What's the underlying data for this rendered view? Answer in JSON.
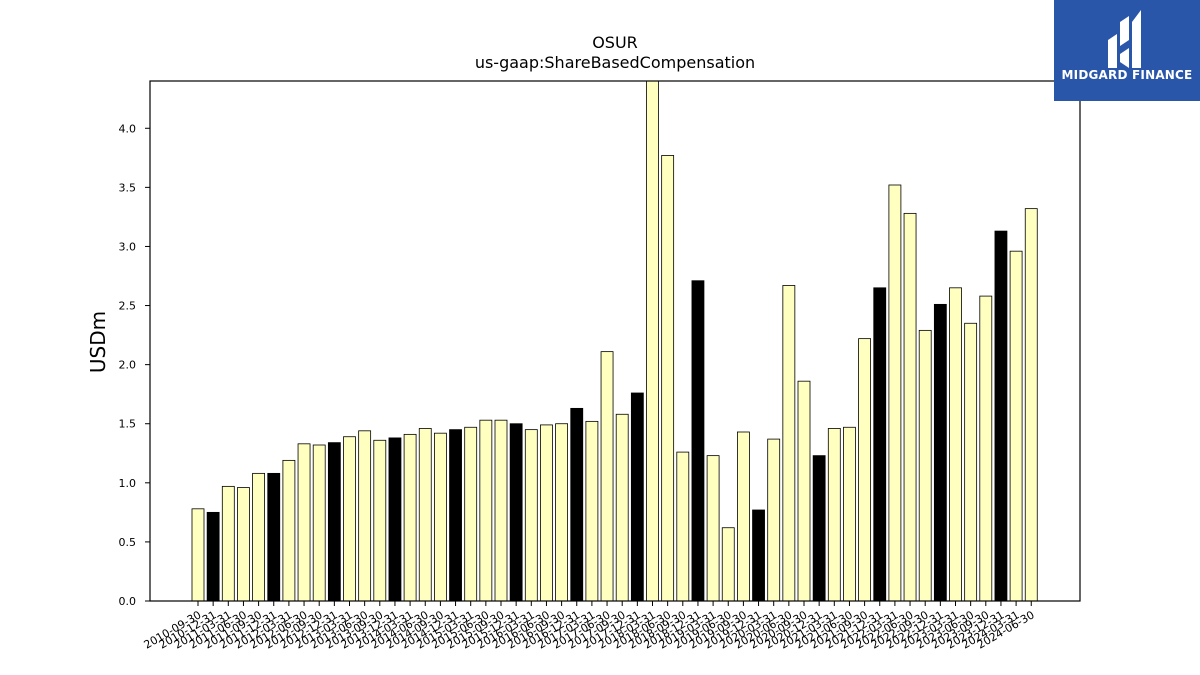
{
  "chart_data": {
    "type": "bar",
    "title": "OSUR",
    "subtitle": "us-gaap:ShareBasedCompensation",
    "xlabel": "",
    "ylabel": "USDm",
    "ylim": [
      0,
      4.4
    ],
    "yticks": [
      "0.0",
      "0.5",
      "1.0",
      "1.5",
      "2.0",
      "2.5",
      "3.0",
      "3.5",
      "4.0"
    ],
    "grid": false,
    "colors": {
      "normal": "#ffffc0",
      "highlight": "#000000",
      "edge": "#000000"
    },
    "categories": [
      "2010-09-30",
      "2010-12-31",
      "2011-03-31",
      "2011-06-30",
      "2011-09-30",
      "2011-12-31",
      "2012-03-31",
      "2012-06-30",
      "2012-09-30",
      "2012-12-31",
      "2013-03-31",
      "2013-06-30",
      "2013-09-30",
      "2013-12-31",
      "2014-03-31",
      "2014-06-30",
      "2014-09-30",
      "2014-12-31",
      "2015-03-31",
      "2015-06-30",
      "2015-09-30",
      "2015-12-31",
      "2016-03-31",
      "2016-06-30",
      "2016-09-30",
      "2016-12-31",
      "2017-03-31",
      "2017-06-30",
      "2017-09-30",
      "2017-12-31",
      "2018-03-31",
      "2018-06-30",
      "2018-09-30",
      "2018-12-31",
      "2019-03-31",
      "2019-06-30",
      "2019-09-30",
      "2019-12-31",
      "2020-03-31",
      "2020-06-30",
      "2020-09-30",
      "2020-12-31",
      "2021-03-31",
      "2021-06-30",
      "2021-09-30",
      "2021-12-31",
      "2022-03-31",
      "2022-06-30",
      "2022-09-30",
      "2022-12-31",
      "2023-03-31",
      "2023-06-30",
      "2023-09-30",
      "2023-12-31",
      "2024-03-31",
      "2024-06-30"
    ],
    "values": [
      0.78,
      0.75,
      0.97,
      0.96,
      1.08,
      1.08,
      1.19,
      1.33,
      1.32,
      1.34,
      1.39,
      1.44,
      1.36,
      1.38,
      1.41,
      1.46,
      1.42,
      1.45,
      1.47,
      1.53,
      1.53,
      1.5,
      1.45,
      1.49,
      1.5,
      1.63,
      1.52,
      2.11,
      1.58,
      1.76,
      4.44,
      3.77,
      1.26,
      2.71,
      1.23,
      0.62,
      1.43,
      0.77,
      1.37,
      2.67,
      1.86,
      1.23,
      1.46,
      1.47,
      2.22,
      2.65,
      3.52,
      3.28,
      2.29,
      2.51,
      2.65,
      2.35,
      2.58,
      3.13,
      2.96,
      3.32
    ],
    "highlight": [
      false,
      true,
      false,
      false,
      false,
      true,
      false,
      false,
      false,
      true,
      false,
      false,
      false,
      true,
      false,
      false,
      false,
      true,
      false,
      false,
      false,
      true,
      false,
      false,
      false,
      true,
      false,
      false,
      false,
      true,
      false,
      false,
      false,
      true,
      false,
      false,
      false,
      true,
      false,
      false,
      false,
      true,
      false,
      false,
      false,
      true,
      false,
      false,
      false,
      true,
      false,
      false,
      false,
      true,
      false,
      false
    ]
  },
  "logo": {
    "text": "MIDGARD FINANCE",
    "icon": "midgard-logo-icon",
    "color": "#2a56a9"
  }
}
